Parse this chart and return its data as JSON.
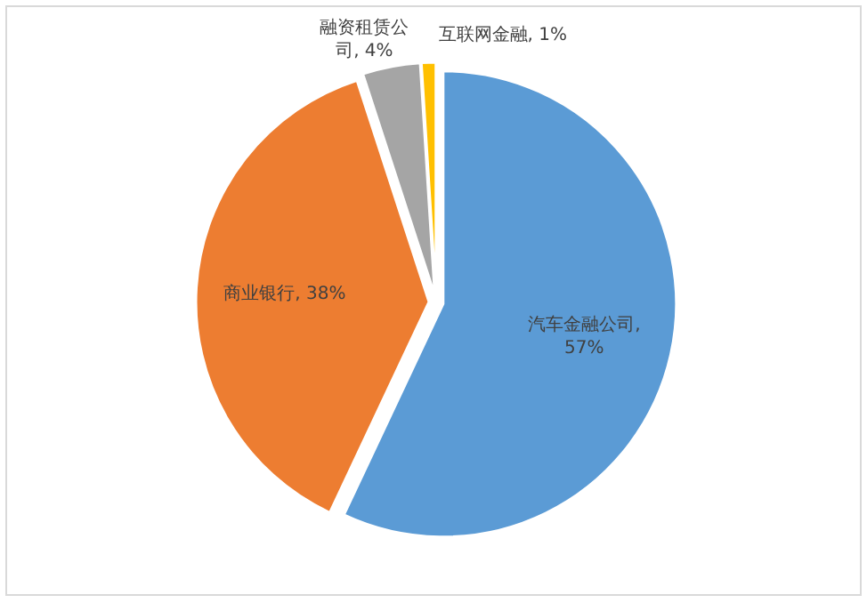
{
  "chart_data": {
    "type": "pie",
    "categories": [
      "汽车金融公司",
      "商业银行",
      "融资租赁公司",
      "互联网金融"
    ],
    "values": [
      57,
      38,
      4,
      1
    ],
    "colors": [
      "#5b9bd5",
      "#ed7d31",
      "#a5a5a5",
      "#ffc000"
    ],
    "value_labels": [
      ", 57%",
      ", 38%",
      ", 4%",
      ", 1%"
    ]
  }
}
